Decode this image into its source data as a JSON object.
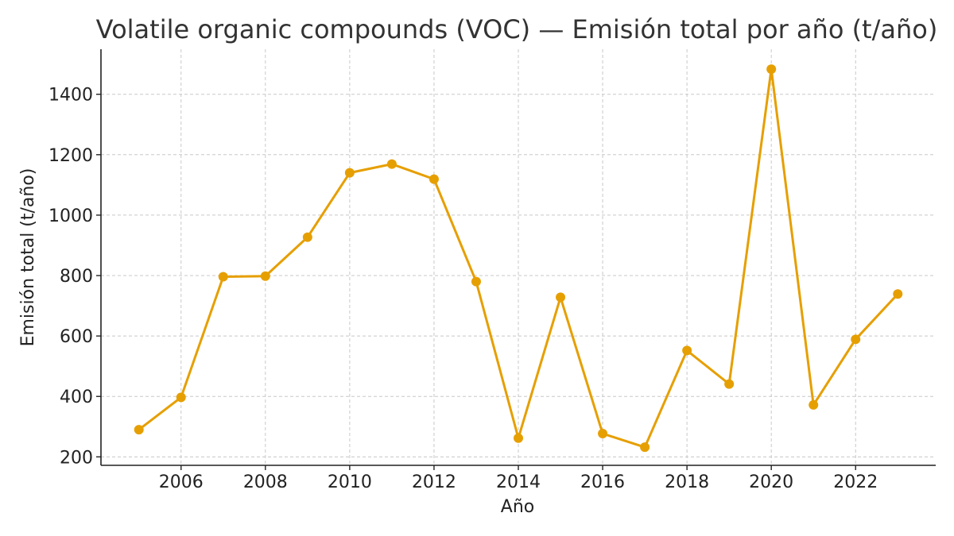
{
  "chart_data": {
    "type": "line",
    "title": "Volatile organic compounds (VOC) — Emisión total por año (t/año)",
    "xlabel": "Año",
    "ylabel": "Emisión total (t/año)",
    "x": [
      2005,
      2006,
      2007,
      2008,
      2009,
      2010,
      2011,
      2012,
      2013,
      2014,
      2015,
      2016,
      2017,
      2018,
      2019,
      2020,
      2021,
      2022,
      2023
    ],
    "series": [
      {
        "values": [
          290,
          397,
          796,
          798,
          927,
          1140,
          1169,
          1119,
          780,
          262,
          728,
          277,
          232,
          552,
          441,
          1483,
          372,
          589,
          739
        ],
        "color": "#E69F00"
      }
    ],
    "xticks": [
      2006,
      2008,
      2010,
      2012,
      2014,
      2016,
      2018,
      2020,
      2022
    ],
    "yticks": [
      200,
      400,
      600,
      800,
      1000,
      1200,
      1400
    ],
    "xlim": [
      2004.1,
      2023.9
    ],
    "ylim": [
      172,
      1549
    ],
    "grid": true,
    "legend": "none"
  }
}
